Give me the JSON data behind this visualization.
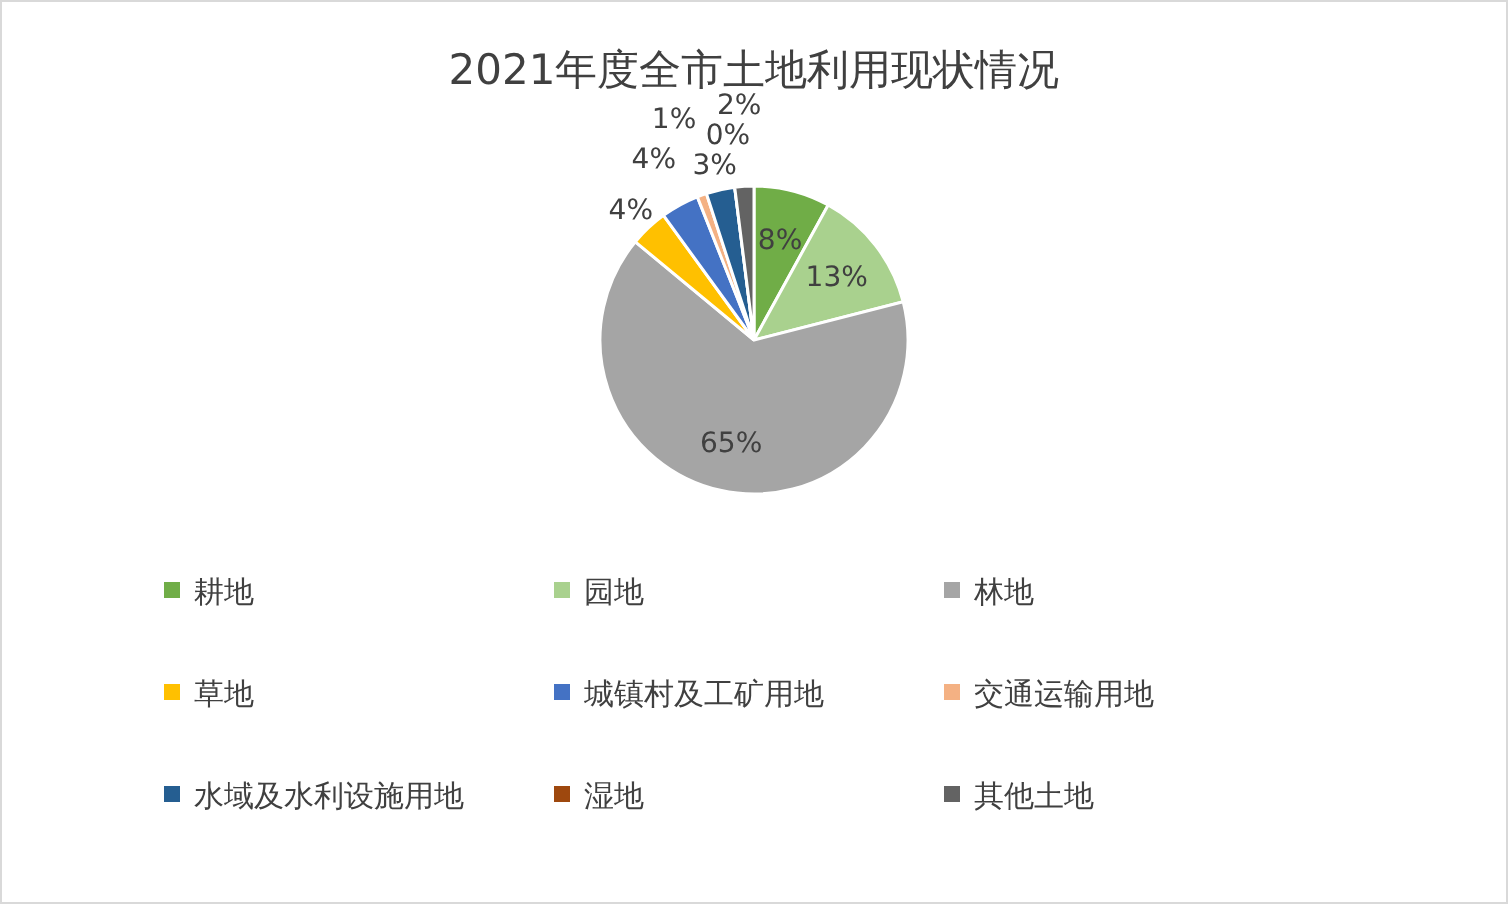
{
  "chart_data": {
    "type": "pie",
    "title": "2021年度全市土地利用现状情况",
    "categories": [
      "耕地",
      "园地",
      "林地",
      "草地",
      "城镇村及工矿用地",
      "交通运输用地",
      "水域及水利设施用地",
      "湿地",
      "其他土地"
    ],
    "values": [
      8,
      13,
      65,
      4,
      4,
      1,
      3,
      0,
      2
    ],
    "colors": [
      "#70ad47",
      "#a9d18e",
      "#a5a5a5",
      "#ffc000",
      "#4472c4",
      "#f4b183",
      "#255e91",
      "#9e480e",
      "#636363"
    ],
    "value_labels": [
      "8%",
      "13%",
      "65%",
      "4%",
      "4%",
      "1%",
      "3%",
      "0%",
      "2%"
    ],
    "legend": "bottom"
  }
}
